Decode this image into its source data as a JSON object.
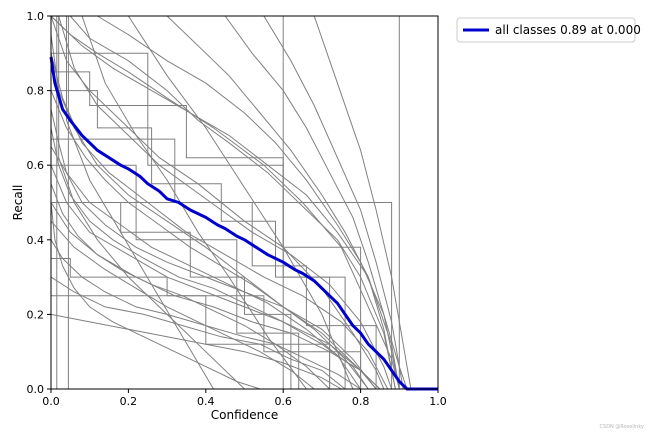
{
  "chart_data": {
    "type": "line",
    "xlabel": "Confidence",
    "ylabel": "Recall",
    "xlim": [
      0,
      1
    ],
    "ylim": [
      0,
      1
    ],
    "xticks": [
      "0.0",
      "0.2",
      "0.4",
      "0.6",
      "0.8",
      "1.0"
    ],
    "yticks": [
      "0.0",
      "0.2",
      "0.4",
      "0.6",
      "0.8",
      "1.0"
    ],
    "grid": false,
    "legend": {
      "position": "outside-top-right",
      "label": "all classes 0.89 at 0.000"
    },
    "class_series_color": "#808080",
    "series": [
      {
        "name": "all classes 0.89 at 0.000",
        "color": "#0000cd",
        "x": [
          0.0,
          0.01,
          0.03,
          0.05,
          0.08,
          0.1,
          0.12,
          0.15,
          0.18,
          0.2,
          0.23,
          0.25,
          0.28,
          0.3,
          0.33,
          0.36,
          0.4,
          0.43,
          0.45,
          0.48,
          0.5,
          0.53,
          0.56,
          0.6,
          0.63,
          0.65,
          0.68,
          0.7,
          0.72,
          0.74,
          0.76,
          0.78,
          0.8,
          0.82,
          0.84,
          0.86,
          0.88,
          0.9,
          0.91,
          0.92,
          0.93,
          0.95,
          1.0
        ],
        "y": [
          0.89,
          0.82,
          0.75,
          0.72,
          0.68,
          0.66,
          0.64,
          0.62,
          0.6,
          0.59,
          0.57,
          0.55,
          0.53,
          0.51,
          0.5,
          0.48,
          0.46,
          0.44,
          0.43,
          0.41,
          0.4,
          0.38,
          0.36,
          0.34,
          0.32,
          0.31,
          0.29,
          0.27,
          0.25,
          0.23,
          0.2,
          0.17,
          0.15,
          0.12,
          0.1,
          0.08,
          0.05,
          0.02,
          0.01,
          0.0,
          0.0,
          0.0,
          0.0
        ]
      }
    ],
    "class_curves": [
      {
        "x": [
          0.0,
          0.05,
          0.12,
          0.2,
          0.3,
          0.42,
          0.55,
          0.65,
          0.75,
          0.82,
          0.88,
          0.9
        ],
        "y": [
          1.0,
          0.95,
          0.9,
          0.85,
          0.78,
          0.7,
          0.6,
          0.5,
          0.38,
          0.22,
          0.08,
          0.0
        ]
      },
      {
        "x": [
          0.0,
          0.04,
          0.1,
          0.18,
          0.28,
          0.38,
          0.5,
          0.6,
          0.7,
          0.78,
          0.84,
          0.86
        ],
        "y": [
          1.0,
          0.88,
          0.8,
          0.72,
          0.62,
          0.55,
          0.45,
          0.38,
          0.27,
          0.15,
          0.05,
          0.0
        ]
      },
      {
        "x": [
          0.0,
          0.02,
          0.06,
          0.12,
          0.2,
          0.3,
          0.4,
          0.5,
          0.6,
          0.7,
          0.8,
          0.85
        ],
        "y": [
          0.95,
          0.8,
          0.7,
          0.6,
          0.52,
          0.45,
          0.38,
          0.3,
          0.22,
          0.15,
          0.05,
          0.0
        ]
      },
      {
        "x": [
          0.0,
          0.03,
          0.08,
          0.15,
          0.25,
          0.35,
          0.45,
          0.55,
          0.65,
          0.75,
          0.82,
          0.87
        ],
        "y": [
          0.9,
          0.78,
          0.66,
          0.58,
          0.5,
          0.42,
          0.36,
          0.3,
          0.25,
          0.18,
          0.1,
          0.0
        ]
      },
      {
        "x": [
          0.0,
          0.02,
          0.05,
          0.1,
          0.16,
          0.24,
          0.33,
          0.42,
          0.52,
          0.62,
          0.72,
          0.8,
          0.84
        ],
        "y": [
          0.7,
          0.6,
          0.52,
          0.45,
          0.4,
          0.35,
          0.3,
          0.27,
          0.22,
          0.17,
          0.12,
          0.05,
          0.0
        ]
      },
      {
        "x": [
          0.0,
          0.04,
          0.1,
          0.2,
          0.3,
          0.4,
          0.5,
          0.6,
          0.7,
          0.78,
          0.82
        ],
        "y": [
          0.6,
          0.5,
          0.42,
          0.36,
          0.3,
          0.26,
          0.22,
          0.18,
          0.12,
          0.06,
          0.0
        ]
      },
      {
        "x": [
          0.0,
          0.05,
          0.12,
          0.22,
          0.32,
          0.42,
          0.52,
          0.62,
          0.72,
          0.8,
          0.85
        ],
        "y": [
          0.5,
          0.42,
          0.36,
          0.3,
          0.25,
          0.22,
          0.18,
          0.15,
          0.1,
          0.05,
          0.0
        ]
      },
      {
        "x": [
          0.0,
          0.03,
          0.08,
          0.14,
          0.22,
          0.3,
          0.4,
          0.5,
          0.58,
          0.66,
          0.74,
          0.8
        ],
        "y": [
          0.4,
          0.35,
          0.3,
          0.26,
          0.22,
          0.2,
          0.17,
          0.14,
          0.12,
          0.08,
          0.04,
          0.0
        ]
      },
      {
        "x": [
          0.0,
          0.06,
          0.14,
          0.24,
          0.34,
          0.44,
          0.54,
          0.62,
          0.7,
          0.76
        ],
        "y": [
          0.3,
          0.26,
          0.22,
          0.2,
          0.17,
          0.14,
          0.12,
          0.08,
          0.05,
          0.0
        ]
      },
      {
        "x": [
          0.0,
          0.1,
          0.2,
          0.3,
          0.4,
          0.5,
          0.6,
          0.7,
          0.75
        ],
        "y": [
          0.2,
          0.18,
          0.16,
          0.14,
          0.12,
          0.1,
          0.07,
          0.03,
          0.0
        ]
      },
      {
        "x": [
          0.0,
          0.08,
          0.16,
          0.26,
          0.36,
          0.46,
          0.56,
          0.66,
          0.74,
          0.82,
          0.88,
          0.9
        ],
        "y": [
          1.0,
          0.92,
          0.86,
          0.8,
          0.74,
          0.68,
          0.6,
          0.52,
          0.42,
          0.3,
          0.12,
          0.0
        ]
      },
      {
        "x": [
          0.05,
          0.1,
          0.2,
          0.3,
          0.38,
          0.46,
          0.56,
          0.66,
          0.74,
          0.8,
          0.86,
          0.89
        ],
        "y": [
          1.0,
          0.94,
          0.88,
          0.8,
          0.72,
          0.66,
          0.58,
          0.48,
          0.4,
          0.3,
          0.15,
          0.0
        ]
      },
      {
        "x": [
          0.12,
          0.2,
          0.3,
          0.4,
          0.5,
          0.58,
          0.66,
          0.74,
          0.8,
          0.86,
          0.9,
          0.92
        ],
        "y": [
          1.0,
          0.95,
          0.88,
          0.82,
          0.74,
          0.66,
          0.56,
          0.44,
          0.34,
          0.2,
          0.06,
          0.0
        ]
      },
      {
        "x": [
          0.0,
          0.04,
          0.09,
          0.14,
          0.2,
          0.28,
          0.36,
          0.44,
          0.52,
          0.6,
          0.68,
          0.76,
          0.82
        ],
        "y": [
          0.8,
          0.7,
          0.62,
          0.56,
          0.5,
          0.44,
          0.38,
          0.33,
          0.28,
          0.22,
          0.16,
          0.08,
          0.0
        ]
      },
      {
        "x": [
          0.0,
          0.02,
          0.04,
          0.08,
          0.14,
          0.22,
          0.3,
          0.4,
          0.5,
          0.6,
          0.7,
          0.78,
          0.84
        ],
        "y": [
          0.75,
          0.66,
          0.58,
          0.5,
          0.44,
          0.38,
          0.34,
          0.3,
          0.26,
          0.22,
          0.16,
          0.08,
          0.0
        ]
      },
      {
        "x": [
          0.02,
          0.06,
          0.12,
          0.2,
          0.28,
          0.36,
          0.44,
          0.52,
          0.62,
          0.72,
          0.8,
          0.86,
          0.88
        ],
        "y": [
          1.0,
          0.86,
          0.76,
          0.68,
          0.6,
          0.54,
          0.48,
          0.42,
          0.36,
          0.28,
          0.18,
          0.06,
          0.0
        ]
      },
      {
        "x": [
          0.3,
          0.38,
          0.46,
          0.54,
          0.62,
          0.7,
          0.76,
          0.82,
          0.86,
          0.89
        ],
        "y": [
          1.0,
          0.92,
          0.84,
          0.74,
          0.64,
          0.52,
          0.42,
          0.3,
          0.16,
          0.0
        ]
      },
      {
        "x": [
          0.45,
          0.52,
          0.6,
          0.66,
          0.72,
          0.78,
          0.82,
          0.86,
          0.9
        ],
        "y": [
          1.0,
          0.9,
          0.8,
          0.7,
          0.58,
          0.46,
          0.34,
          0.2,
          0.0
        ]
      },
      {
        "x": [
          0.55,
          0.62,
          0.68,
          0.74,
          0.8,
          0.84,
          0.88,
          0.91
        ],
        "y": [
          1.0,
          0.88,
          0.76,
          0.62,
          0.48,
          0.34,
          0.18,
          0.0
        ]
      },
      {
        "x": [
          0.68,
          0.74,
          0.8,
          0.84,
          0.88,
          0.91,
          0.93
        ],
        "y": [
          1.0,
          0.82,
          0.64,
          0.48,
          0.3,
          0.12,
          0.0
        ]
      },
      {
        "x": [
          0.0,
          0.18,
          0.18,
          0.36,
          0.36,
          0.5,
          0.5,
          0.62,
          0.62,
          0.7
        ],
        "y": [
          0.5,
          0.5,
          0.42,
          0.42,
          0.3,
          0.3,
          0.2,
          0.2,
          0.0,
          0.0
        ]
      },
      {
        "x": [
          0.0,
          0.12,
          0.12,
          0.26,
          0.26,
          0.44,
          0.44,
          0.58,
          0.58,
          0.72,
          0.72
        ],
        "y": [
          0.8,
          0.8,
          0.7,
          0.7,
          0.55,
          0.55,
          0.45,
          0.45,
          0.3,
          0.3,
          0.0
        ]
      },
      {
        "x": [
          0.0,
          0.32,
          0.32,
          0.52,
          0.52,
          0.66,
          0.66,
          0.84,
          0.84
        ],
        "y": [
          0.67,
          0.67,
          0.5,
          0.5,
          0.33,
          0.33,
          0.17,
          0.17,
          0.0
        ]
      },
      {
        "x": [
          0.0,
          0.25,
          0.25,
          0.6,
          0.6,
          0.76,
          0.76
        ],
        "y": [
          0.9,
          0.9,
          0.6,
          0.6,
          0.3,
          0.3,
          0.0
        ]
      },
      {
        "x": [
          0.0,
          0.88,
          0.88
        ],
        "y": [
          0.5,
          0.5,
          0.0
        ]
      },
      {
        "x": [
          0.0,
          0.05,
          0.05,
          0.3,
          0.3,
          0.55,
          0.55,
          0.8,
          0.8
        ],
        "y": [
          0.35,
          0.35,
          0.3,
          0.3,
          0.25,
          0.25,
          0.1,
          0.1,
          0.0
        ]
      },
      {
        "x": [
          0.0,
          0.4,
          0.4,
          0.72,
          0.72
        ],
        "y": [
          0.25,
          0.25,
          0.12,
          0.12,
          0.0
        ]
      },
      {
        "x": [
          0.0,
          0.22,
          0.22,
          0.48,
          0.48,
          0.64,
          0.64
        ],
        "y": [
          0.6,
          0.6,
          0.4,
          0.4,
          0.15,
          0.15,
          0.0
        ]
      },
      {
        "x": [
          0.0,
          0.1,
          0.1,
          0.35,
          0.35,
          0.6,
          0.6,
          0.8,
          0.8
        ],
        "y": [
          0.85,
          0.85,
          0.76,
          0.76,
          0.62,
          0.62,
          0.38,
          0.38,
          0.0
        ]
      },
      {
        "x": [
          0.02,
          0.02,
          0.06,
          0.12,
          0.2,
          0.3,
          0.4,
          0.5
        ],
        "y": [
          1.0,
          0.62,
          0.5,
          0.4,
          0.3,
          0.2,
          0.1,
          0.0
        ]
      },
      {
        "x": [
          0.04,
          0.04,
          0.1,
          0.18,
          0.26,
          0.34,
          0.42
        ],
        "y": [
          1.0,
          0.72,
          0.56,
          0.42,
          0.28,
          0.14,
          0.0
        ]
      },
      {
        "x": [
          0.08,
          0.14,
          0.22,
          0.3,
          0.38,
          0.46,
          0.56,
          0.66
        ],
        "y": [
          1.0,
          0.82,
          0.68,
          0.56,
          0.42,
          0.3,
          0.14,
          0.0
        ]
      },
      {
        "x": [
          0.2,
          0.3,
          0.4,
          0.5,
          0.6,
          0.7,
          0.78
        ],
        "y": [
          1.0,
          0.84,
          0.7,
          0.54,
          0.38,
          0.2,
          0.0
        ]
      },
      {
        "x": [
          0.0,
          0.03,
          0.07,
          0.12,
          0.18,
          0.26,
          0.34,
          0.42,
          0.5,
          0.58,
          0.66,
          0.72
        ],
        "y": [
          0.55,
          0.47,
          0.41,
          0.36,
          0.32,
          0.28,
          0.25,
          0.21,
          0.17,
          0.12,
          0.06,
          0.0
        ]
      },
      {
        "x": [
          0.0,
          0.06,
          0.14,
          0.22,
          0.3,
          0.38,
          0.46,
          0.54,
          0.62,
          0.68
        ],
        "y": [
          0.45,
          0.38,
          0.32,
          0.27,
          0.22,
          0.18,
          0.14,
          0.1,
          0.05,
          0.0
        ]
      },
      {
        "x": [
          0.0,
          0.04,
          0.1,
          0.18,
          0.26,
          0.36,
          0.46,
          0.56,
          0.66,
          0.74,
          0.8
        ],
        "y": [
          0.65,
          0.58,
          0.5,
          0.44,
          0.38,
          0.33,
          0.28,
          0.23,
          0.16,
          0.09,
          0.0
        ]
      },
      {
        "x": [
          0.0,
          0.01,
          0.03,
          0.06,
          0.1,
          0.16,
          0.24,
          0.32,
          0.4,
          0.48,
          0.54
        ],
        "y": [
          0.5,
          0.4,
          0.33,
          0.27,
          0.22,
          0.18,
          0.14,
          0.1,
          0.06,
          0.02,
          0.0
        ]
      },
      {
        "x": [
          0.015,
          0.015
        ],
        "y": [
          1.0,
          0.0
        ]
      },
      {
        "x": [
          0.045,
          0.045
        ],
        "y": [
          1.0,
          0.0
        ]
      },
      {
        "x": [
          0.6,
          0.6
        ],
        "y": [
          1.0,
          0.0
        ]
      },
      {
        "x": [
          0.9,
          0.9
        ],
        "y": [
          1.0,
          0.0
        ]
      }
    ]
  },
  "watermark": "CSDN @Roselinky"
}
